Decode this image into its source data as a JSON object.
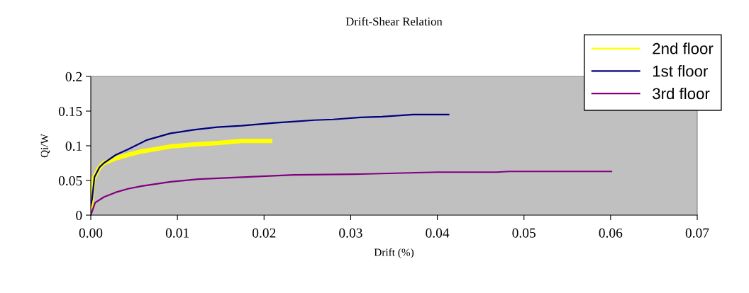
{
  "chart_data": {
    "type": "line",
    "title": "Drift-Shear Relation",
    "xlabel": "Drift (%)",
    "ylabel": "Qi/W",
    "xlim": [
      0,
      0.07
    ],
    "xticks": [
      {
        "value": 0,
        "label": "0.00"
      },
      {
        "value": 0.01,
        "label": "0.01"
      },
      {
        "value": 0.02,
        "label": "0.02"
      },
      {
        "value": 0.03,
        "label": "0.03"
      },
      {
        "value": 0.04,
        "label": "0.04"
      },
      {
        "value": 0.05,
        "label": "0.05"
      },
      {
        "value": 0.06,
        "label": "0.06"
      },
      {
        "value": 0.07,
        "label": "0.07"
      }
    ],
    "ylim": [
      0,
      0.2
    ],
    "yticks": [
      0,
      0.05,
      0.1,
      0.15,
      0.2
    ],
    "grid": false,
    "legend": "top right",
    "marker": "none",
    "line_style": "solid",
    "series": [
      {
        "name": "2nd floor",
        "color": "#ffff00",
        "x": [
          0,
          0.0003,
          0.001,
          0.0015,
          0.0029,
          0.0043,
          0.0059,
          0.0064,
          0.0092,
          0.0119,
          0.0146,
          0.0174,
          0.0207
        ],
        "values": [
          0.01,
          0.052,
          0.069,
          0.075,
          0.082,
          0.087,
          0.092,
          0.093,
          0.099,
          0.102,
          0.104,
          0.107,
          0.107
        ]
      },
      {
        "name": "1st floor",
        "color": "#000080",
        "x": [
          0,
          0.00016,
          0.00043,
          0.001,
          0.0015,
          0.0029,
          0.0043,
          0.0064,
          0.0092,
          0.0119,
          0.0146,
          0.0174,
          0.0212,
          0.0236,
          0.0258,
          0.028,
          0.0311,
          0.0336,
          0.0372,
          0.0413
        ],
        "values": [
          0.014,
          0.024,
          0.055,
          0.069,
          0.075,
          0.087,
          0.095,
          0.108,
          0.118,
          0.123,
          0.127,
          0.129,
          0.133,
          0.135,
          0.137,
          0.138,
          0.141,
          0.142,
          0.145,
          0.145
        ]
      },
      {
        "name": "3rd floor",
        "color": "#800080",
        "x": [
          0,
          0.0005,
          0.0015,
          0.0029,
          0.0043,
          0.0059,
          0.0092,
          0.0124,
          0.0179,
          0.0234,
          0.0305,
          0.04,
          0.0468,
          0.0483,
          0.0601
        ],
        "values": [
          0,
          0.018,
          0.026,
          0.033,
          0.038,
          0.042,
          0.048,
          0.052,
          0.055,
          0.058,
          0.059,
          0.062,
          0.062,
          0.063,
          0.063
        ]
      }
    ]
  }
}
